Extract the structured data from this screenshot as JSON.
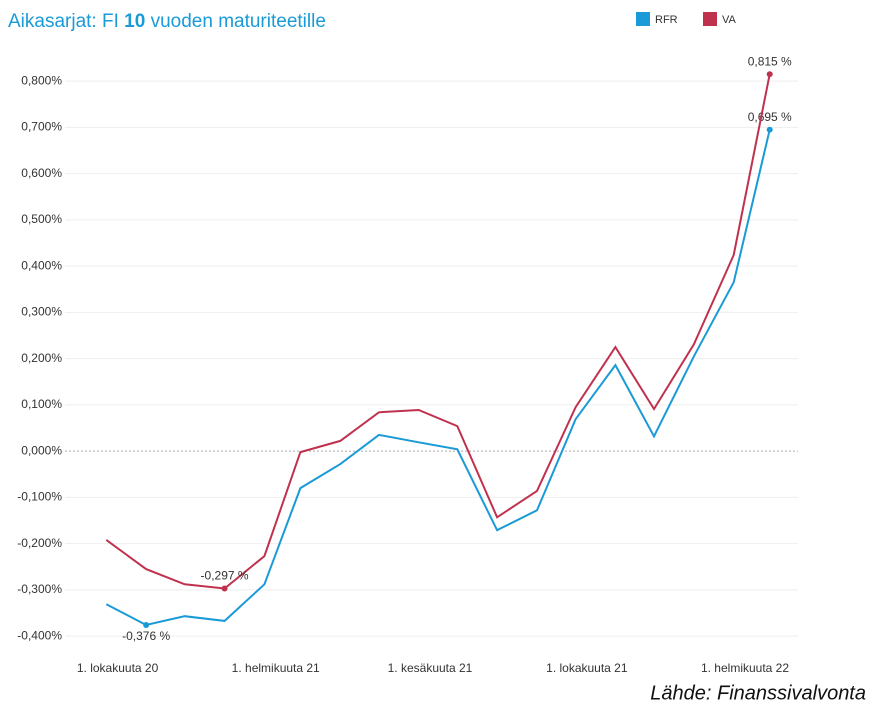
{
  "chart_data": {
    "type": "line",
    "title": [
      "Aikasarjat: FI ",
      "10",
      " vuoden maturiteetille"
    ],
    "source": "Lähde: Finanssivalvonta",
    "x": [
      "2020-09-30",
      "2020-10-31",
      "2020-11-30",
      "2020-12-31",
      "2021-01-31",
      "2021-02-28",
      "2021-03-31",
      "2021-04-30",
      "2021-05-31",
      "2021-06-30",
      "2021-07-31",
      "2021-08-31",
      "2021-09-30",
      "2021-10-31",
      "2021-11-30",
      "2021-12-31",
      "2022-01-31",
      "2022-02-28"
    ],
    "series": [
      {
        "name": "RFR",
        "color": "#1a9ad6",
        "values": [
          -0.331,
          -0.376,
          -0.357,
          -0.367,
          -0.288,
          -0.08,
          -0.028,
          0.035,
          0.019,
          0.004,
          -0.171,
          -0.128,
          0.069,
          0.186,
          0.032,
          0.205,
          0.365,
          0.695
        ],
        "value_labels": [
          null,
          "-0,376 %",
          null,
          null,
          null,
          null,
          null,
          null,
          null,
          null,
          null,
          null,
          null,
          null,
          null,
          null,
          null,
          "0,695 %"
        ]
      },
      {
        "name": "VA",
        "color": "#c0314e",
        "values": [
          -0.192,
          -0.255,
          -0.288,
          -0.297,
          -0.227,
          -0.002,
          0.022,
          0.084,
          0.089,
          0.054,
          -0.143,
          -0.086,
          0.095,
          0.225,
          0.091,
          0.231,
          0.424,
          0.815
        ],
        "value_labels": [
          null,
          null,
          null,
          "-0,297 %",
          null,
          null,
          null,
          null,
          null,
          null,
          null,
          null,
          null,
          null,
          null,
          null,
          null,
          "0,815 %"
        ]
      }
    ],
    "xlim": [
      "2020-09-15",
      "2022-03-15"
    ],
    "xticks": [
      {
        "value": "2020-10-01",
        "label": "1. lokakuuta 20"
      },
      {
        "value": "2021-02-01",
        "label": "1. helmikuuta 21"
      },
      {
        "value": "2021-06-01",
        "label": "1. kesäkuuta 21"
      },
      {
        "value": "2021-10-01",
        "label": "1. lokakuuta 21"
      },
      {
        "value": "2022-02-01",
        "label": "1. helmikuuta 22"
      }
    ],
    "ylim": [
      -0.43,
      0.85
    ],
    "yticks": [
      {
        "value": -0.4,
        "label": "-0,400%"
      },
      {
        "value": -0.3,
        "label": "-0,300%"
      },
      {
        "value": -0.2,
        "label": "-0,200%"
      },
      {
        "value": -0.1,
        "label": "-0,100%"
      },
      {
        "value": 0,
        "label": "0,000%"
      },
      {
        "value": 0.1,
        "label": "0,100%"
      },
      {
        "value": 0.2,
        "label": "0,200%"
      },
      {
        "value": 0.3,
        "label": "0,300%"
      },
      {
        "value": 0.4,
        "label": "0,400%"
      },
      {
        "value": 0.5,
        "label": "0,500%"
      },
      {
        "value": 0.6,
        "label": "0,600%"
      },
      {
        "value": 0.7,
        "label": "0,700%"
      },
      {
        "value": 0.8,
        "label": "0,800%"
      }
    ],
    "grid": true,
    "legend": "top-right"
  }
}
